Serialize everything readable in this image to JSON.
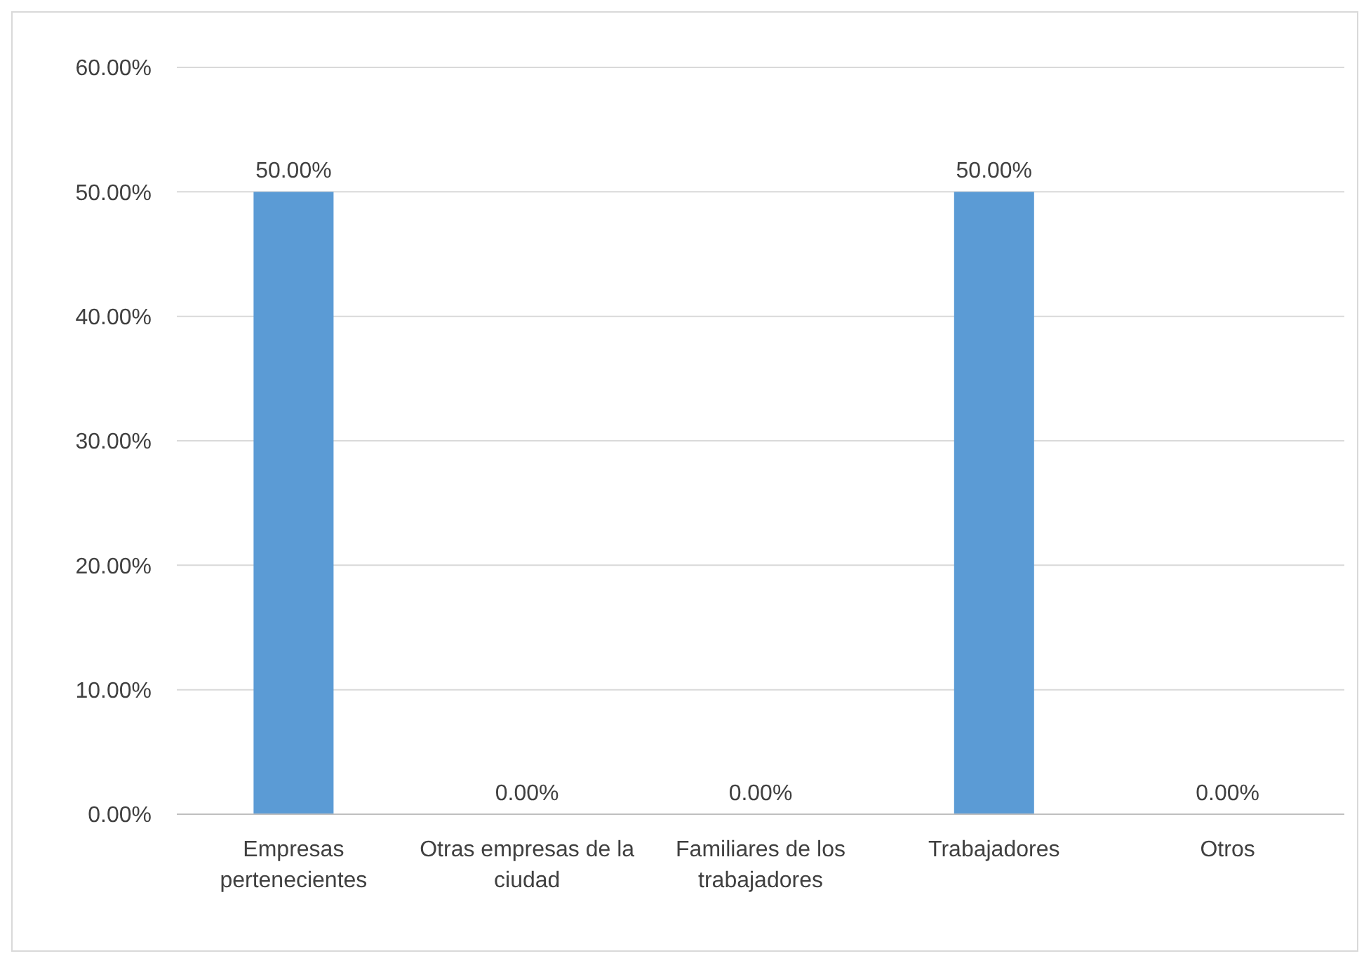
{
  "chart_data": {
    "type": "bar",
    "categories": [
      "Empresas pertenecientes",
      "Otras empresas de la ciudad",
      "Familiares de los trabajadores",
      "Trabajadores",
      "Otros"
    ],
    "values": [
      50,
      0,
      0,
      50,
      0
    ],
    "value_labels": [
      "50.00%",
      "0.00%",
      "0.00%",
      "50.00%",
      "0.00%"
    ],
    "color": "#5b9bd5",
    "ylim": [
      0,
      60
    ],
    "yticks": [
      {
        "value": 0,
        "label": "0.00%"
      },
      {
        "value": 10,
        "label": "10.00%"
      },
      {
        "value": 20,
        "label": "20.00%"
      },
      {
        "value": 30,
        "label": "30.00%"
      },
      {
        "value": 40,
        "label": "40.00%"
      },
      {
        "value": 50,
        "label": "50.00%"
      },
      {
        "value": 60,
        "label": "60.00%"
      }
    ],
    "grid": "y"
  }
}
